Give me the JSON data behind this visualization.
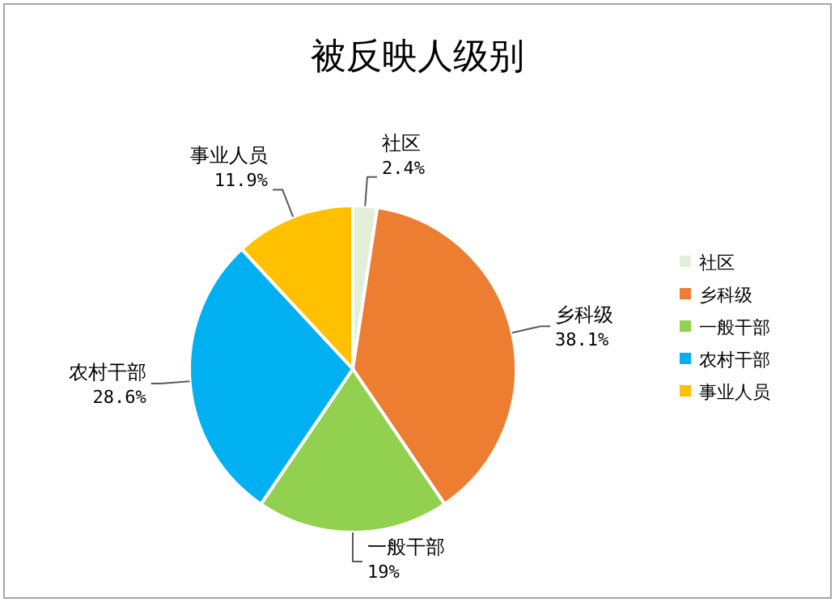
{
  "chart_data": {
    "type": "pie",
    "title": "被反映人级别",
    "categories": [
      "社区",
      "乡科级",
      "一般干部",
      "农村干部",
      "事业人员"
    ],
    "values": [
      2.4,
      38.1,
      19,
      28.6,
      11.9
    ],
    "value_labels": [
      "2.4%",
      "38.1%",
      "19%",
      "28.6%",
      "11.9%"
    ],
    "colors": [
      "#e2f0d9",
      "#ed7d31",
      "#92d050",
      "#00b0f0",
      "#ffc000"
    ],
    "legend": "right"
  }
}
